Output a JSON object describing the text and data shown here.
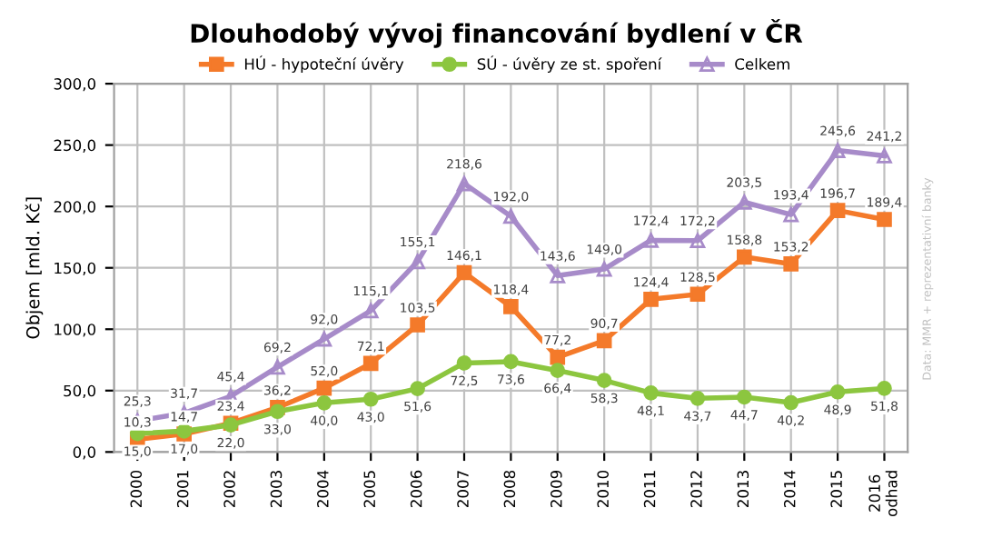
{
  "chart_data": {
    "type": "line",
    "title": "Dlouhodobý vývoj financování bydlení v ČR",
    "ylabel": "Objem [mld. Kč]",
    "categories": [
      "2000",
      "2001",
      "2002",
      "2003",
      "2004",
      "2005",
      "2006",
      "2007",
      "2008",
      "2009",
      "2010",
      "2011",
      "2012",
      "2013",
      "2014",
      "2015",
      "2016\nodhad"
    ],
    "series": [
      {
        "name": "HÚ - hypoteční úvěry",
        "color": "#f47a2a",
        "marker": "square",
        "values": [
          10.3,
          14.7,
          23.4,
          36.2,
          52.0,
          72.1,
          103.5,
          146.1,
          118.4,
          77.2,
          90.7,
          124.4,
          128.5,
          158.8,
          153.2,
          196.7,
          189.4
        ],
        "value_labels": [
          "10,3",
          "14,7",
          "23,4",
          "36,2",
          "52,0",
          "72,1",
          "103,5",
          "146,1",
          "118,4",
          "77,2",
          "90,7",
          "124,4",
          "128,5",
          "158,8",
          "153,2",
          "196,7",
          "189,4"
        ]
      },
      {
        "name": "SÚ - úvěry ze st. spoření",
        "color": "#8cc63f",
        "marker": "circle",
        "values": [
          15.0,
          17.0,
          22.0,
          33.0,
          40.0,
          43.0,
          51.6,
          72.5,
          73.6,
          66.4,
          58.3,
          48.1,
          43.7,
          44.7,
          40.2,
          48.9,
          51.8
        ],
        "value_labels": [
          "15,0",
          "17,0",
          "22,0",
          "33,0",
          "40,0",
          "43,0",
          "51,6",
          "72,5",
          "73,6",
          "66,4",
          "58,3",
          "48,1",
          "43,7",
          "44,7",
          "40,2",
          "48,9",
          "51,8"
        ]
      },
      {
        "name": "Celkem",
        "color": "#a78bc9",
        "marker": "triangle",
        "values": [
          25.3,
          31.7,
          45.4,
          69.2,
          92.0,
          115.1,
          155.1,
          218.6,
          192.0,
          143.6,
          149.0,
          172.4,
          172.2,
          203.5,
          193.4,
          245.6,
          241.2
        ],
        "value_labels": [
          "25,3",
          "31,7",
          "45,4",
          "69,2",
          "92,0",
          "115,1",
          "155,1",
          "218,6",
          "192,0",
          "143,6",
          "149,0",
          "172,4",
          "172,2",
          "203,5",
          "193,4",
          "245,6",
          "241,2"
        ]
      }
    ],
    "ylim": [
      0,
      300
    ],
    "yticks": [
      {
        "value": 0,
        "label": "0,0"
      },
      {
        "value": 50,
        "label": "50,0"
      },
      {
        "value": 100,
        "label": "100,0"
      },
      {
        "value": 150,
        "label": "150,0"
      },
      {
        "value": 200,
        "label": "200,0"
      },
      {
        "value": 250,
        "label": "250,0"
      },
      {
        "value": 300,
        "label": "300,0"
      }
    ],
    "grid": true,
    "legend": "top",
    "line_style": "solid",
    "annotations": [
      "Data: MMR + reprezentativní banky"
    ]
  }
}
